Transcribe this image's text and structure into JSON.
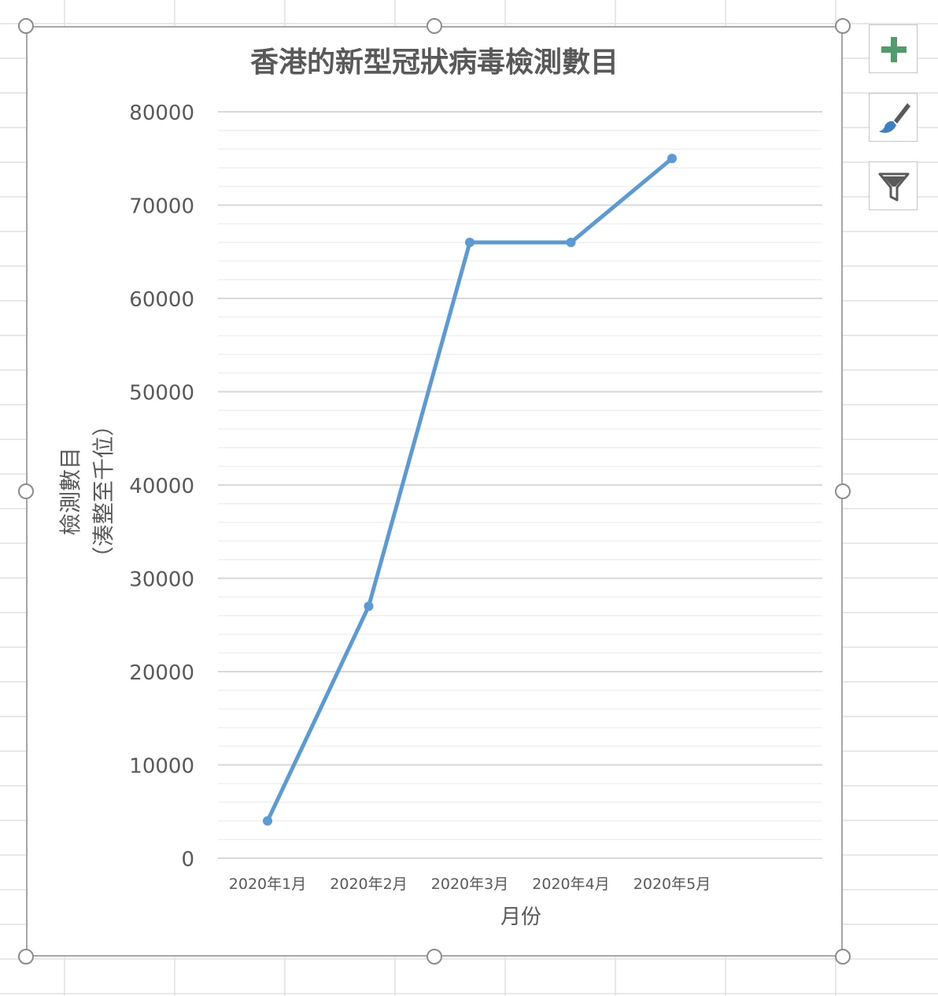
{
  "colors": {
    "series": "#5b9bd5",
    "text": "#595959",
    "major_grid": "#d9d9d9",
    "minor_grid": "#f0f0f0",
    "frame": "#a6a6a6",
    "sheet_grid": "#e1e1e1"
  },
  "side_buttons": [
    {
      "name": "chart-elements-button",
      "icon": "plus-icon"
    },
    {
      "name": "chart-styles-button",
      "icon": "paintbrush-icon"
    },
    {
      "name": "chart-filters-button",
      "icon": "funnel-icon"
    }
  ],
  "chart_data": {
    "type": "line",
    "title": "香港的新型冠狀病毒檢測數目",
    "xlabel": "月份",
    "ylabel_lines": [
      "檢測數目",
      "（湊整至千位）"
    ],
    "categories": [
      "2020年1月",
      "2020年2月",
      "2020年3月",
      "2020年4月",
      "2020年5月"
    ],
    "series": [
      {
        "values": [
          4000,
          27000,
          66000,
          66000,
          75000
        ]
      }
    ],
    "ylim": [
      0,
      80000
    ],
    "y_ticks": [
      "0",
      "10000",
      "20000",
      "30000",
      "40000",
      "50000",
      "60000",
      "70000",
      "80000"
    ],
    "major_gridlines": true,
    "minor_gridlines": true,
    "legend": "none"
  }
}
